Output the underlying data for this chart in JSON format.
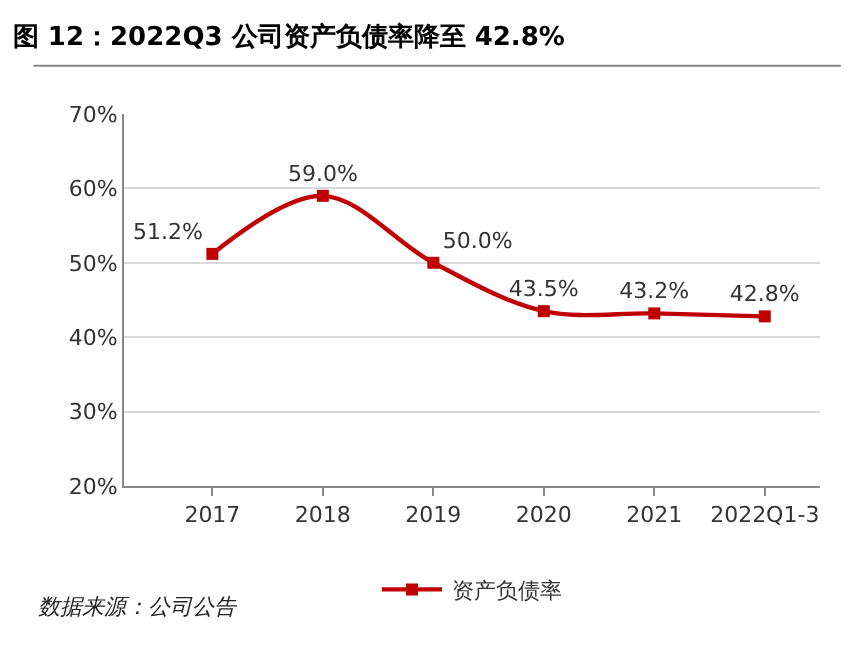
{
  "chart_data": {
    "type": "line",
    "title": "图 12：2022Q3 公司资产负债率降至 42.8%",
    "categories": [
      "2017",
      "2018",
      "2019",
      "2020",
      "2021",
      "2022Q1-3"
    ],
    "series": [
      {
        "name": "资产负债率",
        "color": "#c00000",
        "values": [
          51.2,
          59.0,
          50.0,
          43.5,
          43.2,
          42.8
        ],
        "value_labels": [
          "51.2%",
          "59.0%",
          "50.0%",
          "43.5%",
          "43.2%",
          "42.8%"
        ]
      }
    ],
    "ylim": [
      20,
      70
    ],
    "yticks": [
      {
        "value": 20,
        "label": "20%"
      },
      {
        "value": 30,
        "label": "30%"
      },
      {
        "value": 40,
        "label": "40%"
      },
      {
        "value": 50,
        "label": "50%"
      },
      {
        "value": 60,
        "label": "60%"
      },
      {
        "value": 70,
        "label": "70%"
      }
    ],
    "grid": "y",
    "legend": "bottom",
    "marker": "square",
    "line_style": "solid",
    "annotations": [
      "数据来源：公司公告"
    ]
  }
}
